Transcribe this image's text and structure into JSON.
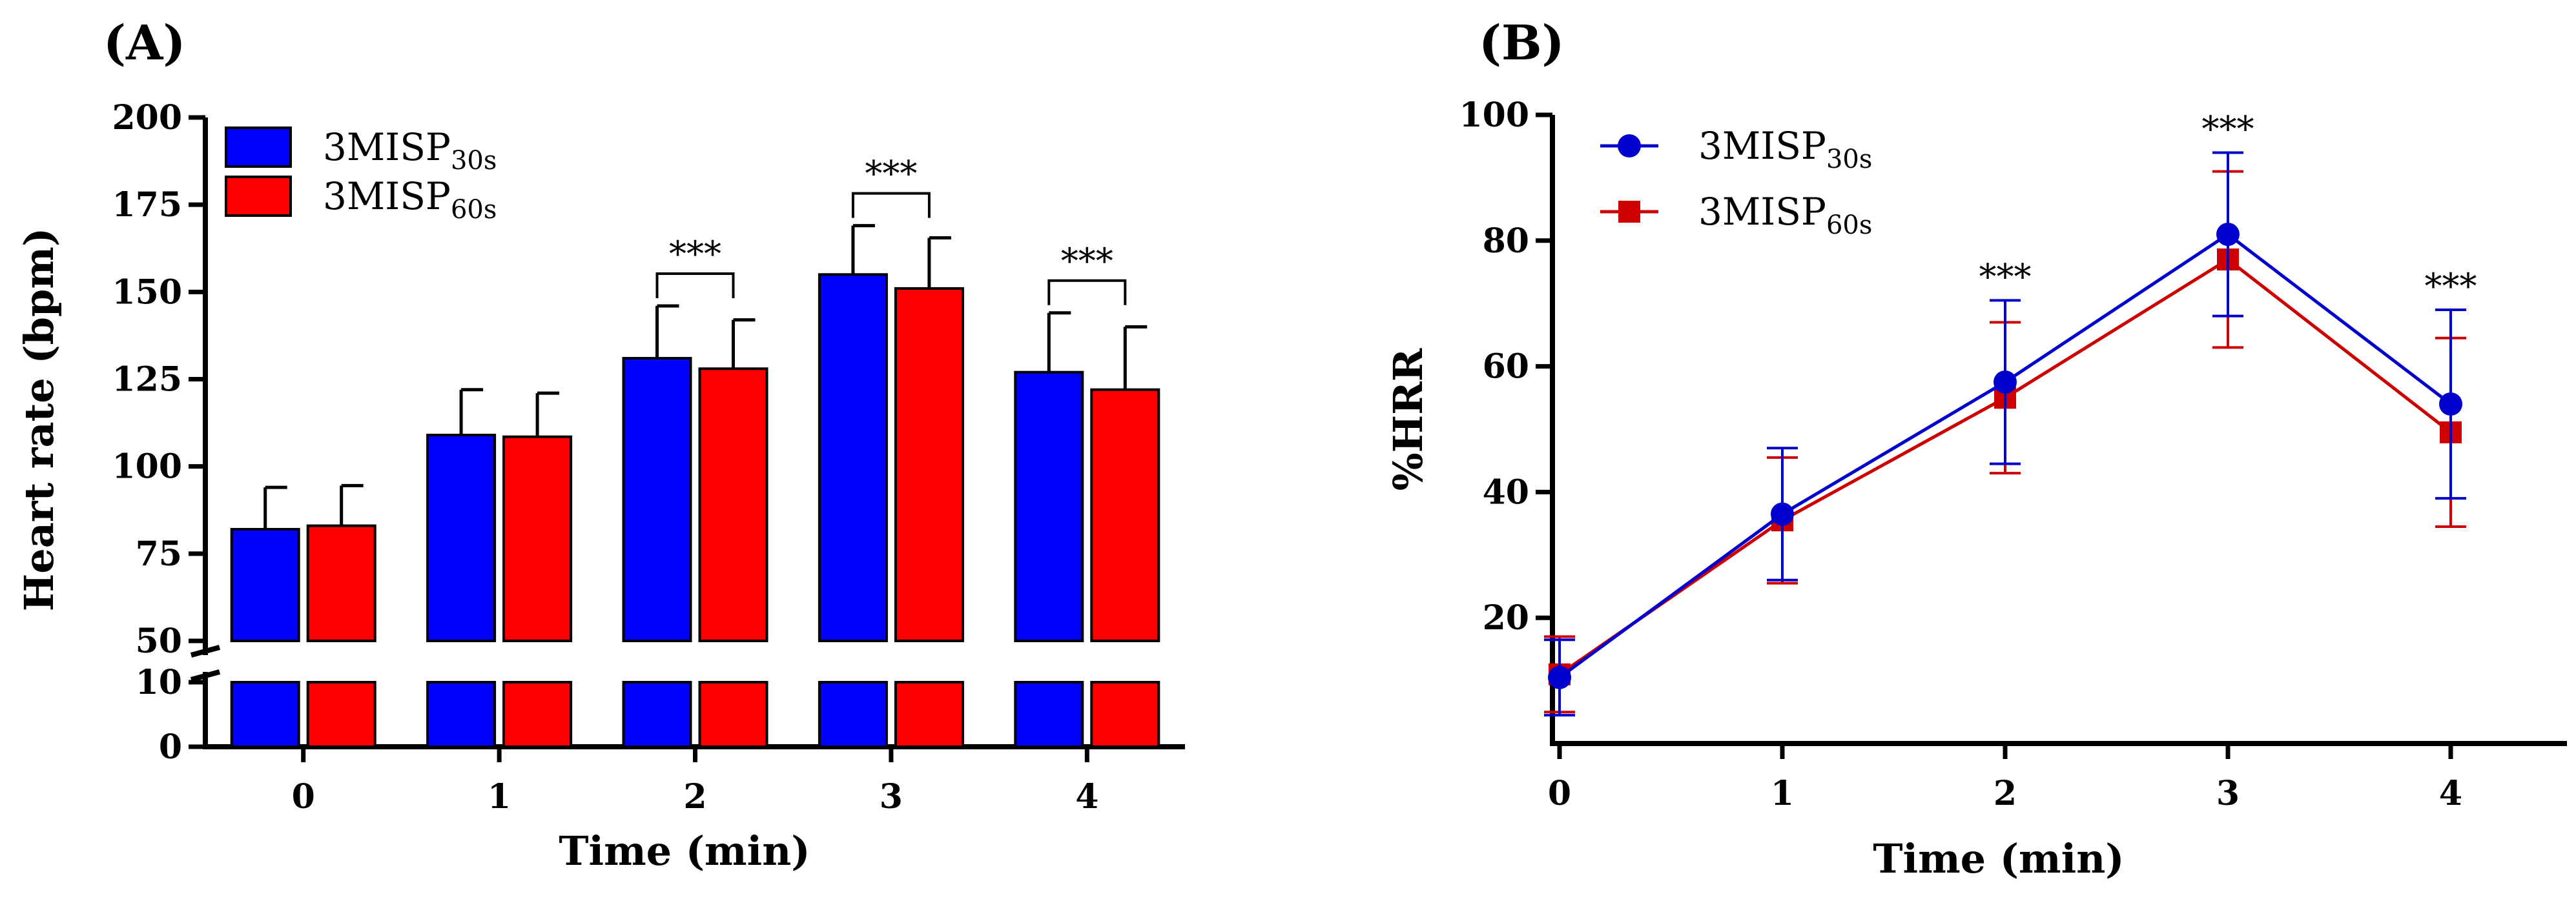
{
  "chart_data": [
    {
      "panel": "A",
      "panel_label": "(A)",
      "type": "bar",
      "title": "",
      "xlabel": "Time (min)",
      "ylabel": "Heart rate (bpm)",
      "categories": [
        "0",
        "1",
        "2",
        "3",
        "4"
      ],
      "y_broken_axis": true,
      "y_lower_segment": [
        0,
        10
      ],
      "y_upper_segment": [
        50,
        200
      ],
      "yticks_upper": [
        "50",
        "75",
        "100",
        "125",
        "150",
        "175",
        "200"
      ],
      "yticks_lower": [
        "0",
        "10"
      ],
      "series": [
        {
          "name": "3MISP30s",
          "legend_base": "3MISP",
          "legend_sub": "30s",
          "color": "#0000ff",
          "values": [
            82,
            109,
            131,
            155,
            127
          ],
          "errors": [
            12,
            13,
            15,
            14,
            17
          ]
        },
        {
          "name": "3MISP60s",
          "legend_base": "3MISP",
          "legend_sub": "60s",
          "color": "#ff0000",
          "values": [
            83,
            108.5,
            128,
            151,
            122
          ],
          "errors": [
            11.5,
            12.5,
            14,
            14.5,
            18
          ]
        }
      ],
      "significance": [
        {
          "category": "2",
          "label": "***"
        },
        {
          "category": "3",
          "label": "***"
        },
        {
          "category": "4",
          "label": "***"
        }
      ]
    },
    {
      "panel": "B",
      "panel_label": "(B)",
      "type": "line",
      "title": "",
      "xlabel": "Time (min)",
      "ylabel": "%HRR",
      "x": [
        0,
        1,
        2,
        3,
        4
      ],
      "xticks": [
        "0",
        "1",
        "2",
        "3",
        "4"
      ],
      "ylim": [
        0,
        100
      ],
      "yticks": [
        "20",
        "40",
        "60",
        "80",
        "100"
      ],
      "series": [
        {
          "name": "3MISP30s",
          "legend_base": "3MISP",
          "legend_sub": "30s",
          "color": "#0000cc",
          "marker": "circle",
          "values": [
            10.5,
            36.5,
            57.5,
            81,
            54
          ],
          "errors": [
            6,
            10.5,
            13,
            13,
            15
          ]
        },
        {
          "name": "3MISP60s",
          "legend_base": "3MISP",
          "legend_sub": "60s",
          "color": "#cc0000",
          "marker": "square",
          "values": [
            11,
            35.5,
            55,
            77,
            49.5
          ],
          "errors": [
            6,
            10,
            12,
            14,
            15
          ]
        }
      ],
      "significance": [
        {
          "x": 2,
          "label": "***"
        },
        {
          "x": 3,
          "label": "***"
        },
        {
          "x": 4,
          "label": "***"
        }
      ]
    }
  ]
}
